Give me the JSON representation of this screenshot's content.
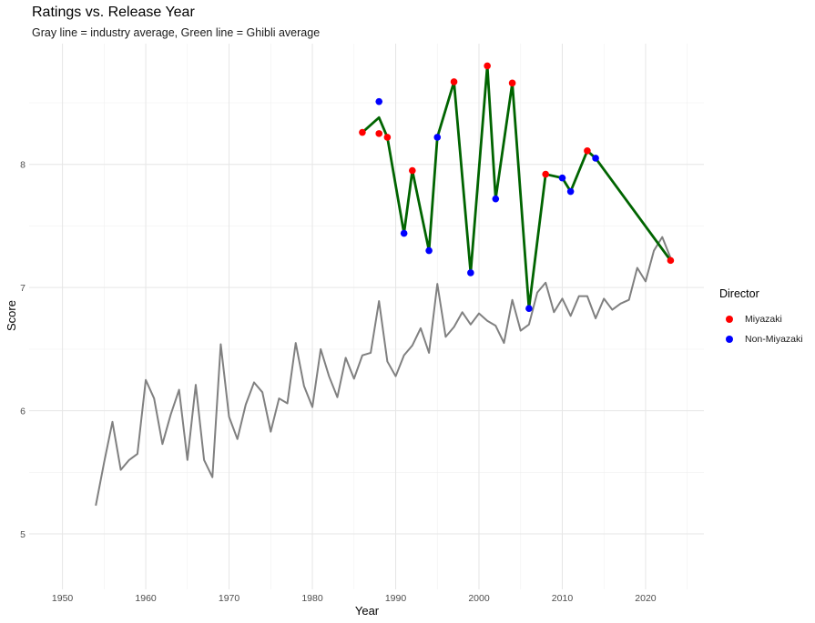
{
  "title": "Ratings vs. Release Year",
  "subtitle": "Gray line = industry average, Green line = Ghibli average",
  "chart_data": {
    "type": "line",
    "xlabel": "Year",
    "ylabel": "Score",
    "xlim": [
      1946,
      2027
    ],
    "ylim": [
      4.55,
      8.98
    ],
    "x_ticks": [
      1950,
      1960,
      1970,
      1980,
      1990,
      2000,
      2010,
      2020
    ],
    "y_ticks": [
      5,
      6,
      7,
      8
    ],
    "grid": true,
    "legend_position": "right",
    "colors": {
      "industry_line": "#808080",
      "ghibli_line": "#006400",
      "miyazaki": "#ff0000",
      "non_miyazaki": "#0000ff"
    },
    "industry_average": {
      "x": [
        1954,
        1955,
        1956,
        1957,
        1958,
        1959,
        1960,
        1961,
        1962,
        1963,
        1964,
        1965,
        1966,
        1967,
        1968,
        1969,
        1970,
        1971,
        1972,
        1973,
        1974,
        1975,
        1976,
        1977,
        1978,
        1979,
        1980,
        1981,
        1982,
        1983,
        1984,
        1985,
        1986,
        1987,
        1988,
        1989,
        1990,
        1991,
        1992,
        1993,
        1994,
        1995,
        1996,
        1997,
        1998,
        1999,
        2000,
        2001,
        2002,
        2003,
        2004,
        2005,
        2006,
        2007,
        2008,
        2009,
        2010,
        2011,
        2012,
        2013,
        2014,
        2015,
        2016,
        2017,
        2018,
        2019,
        2020,
        2021,
        2022,
        2023
      ],
      "y": [
        5.23,
        5.58,
        5.91,
        5.52,
        5.6,
        5.65,
        6.25,
        6.1,
        5.73,
        5.97,
        6.17,
        5.6,
        6.21,
        5.6,
        5.46,
        6.54,
        5.95,
        5.77,
        6.05,
        6.23,
        6.15,
        5.83,
        6.1,
        6.06,
        6.55,
        6.2,
        6.03,
        6.5,
        6.28,
        6.11,
        6.43,
        6.26,
        6.45,
        6.47,
        6.89,
        6.4,
        6.28,
        6.45,
        6.53,
        6.67,
        6.47,
        7.03,
        6.6,
        6.68,
        6.8,
        6.7,
        6.79,
        6.73,
        6.69,
        6.55,
        6.9,
        6.65,
        6.7,
        6.96,
        7.04,
        6.8,
        6.91,
        6.77,
        6.93,
        6.93,
        6.75,
        6.91,
        6.82,
        6.87,
        6.9,
        7.16,
        7.05,
        7.3,
        7.41,
        7.24
      ]
    },
    "ghibli_average": {
      "x": [
        1986,
        1988,
        1989,
        1991,
        1992,
        1994,
        1995,
        1997,
        1999,
        2001,
        2002,
        2004,
        2006,
        2008,
        2010,
        2011,
        2013,
        2014,
        2023
      ],
      "y": [
        8.26,
        8.38,
        8.22,
        7.44,
        7.95,
        7.3,
        8.22,
        8.67,
        7.12,
        8.8,
        7.72,
        8.66,
        6.83,
        7.92,
        7.89,
        7.78,
        8.11,
        8.05,
        7.22
      ]
    },
    "series": [
      {
        "name": "Miyazaki",
        "x": [
          1986,
          1988,
          1989,
          1992,
          1997,
          2001,
          2004,
          2008,
          2013,
          2023
        ],
        "y": [
          8.26,
          8.25,
          8.22,
          7.95,
          8.67,
          8.8,
          8.66,
          7.92,
          8.11,
          7.22
        ]
      },
      {
        "name": "Non-Miyazaki",
        "x": [
          1988,
          1991,
          1994,
          1995,
          1999,
          2002,
          2006,
          2010,
          2011,
          2014
        ],
        "y": [
          8.51,
          7.44,
          7.3,
          8.22,
          7.12,
          7.72,
          6.83,
          7.89,
          7.78,
          8.05
        ]
      }
    ]
  },
  "legend": {
    "title": "Director",
    "items": [
      {
        "label": "Miyazaki",
        "color": "#ff0000"
      },
      {
        "label": "Non-Miyazaki",
        "color": "#0000ff"
      }
    ]
  }
}
